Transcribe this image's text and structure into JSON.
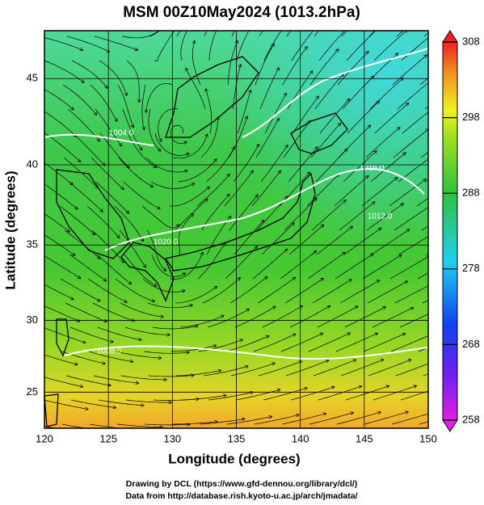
{
  "title": "MSM 00Z10May2024 (1013.2hPa)",
  "map": {
    "x_label": "Longitude (degrees)",
    "y_label": "Latitude  (degrees)",
    "xlim": [
      120,
      150
    ],
    "ylim": [
      22.4,
      47.6
    ],
    "xticks": [
      120,
      125,
      130,
      135,
      140,
      145,
      150
    ],
    "yticks": [
      25,
      30,
      35,
      40,
      45
    ]
  },
  "colorbar": {
    "lim": [
      258,
      308
    ],
    "ticks": [
      258,
      268,
      278,
      288,
      298,
      308
    ]
  },
  "contour_labels": [
    "1020.0",
    "1016.0",
    "1012.0",
    "1008.0",
    "1004.0"
  ],
  "credits": [
    "Drawing by DCL (https://www.gfd-dennou.org/library/dcl/)",
    "Data from http://database.rish.kyoto-u.ac.jp/arch/jmadata/"
  ]
}
